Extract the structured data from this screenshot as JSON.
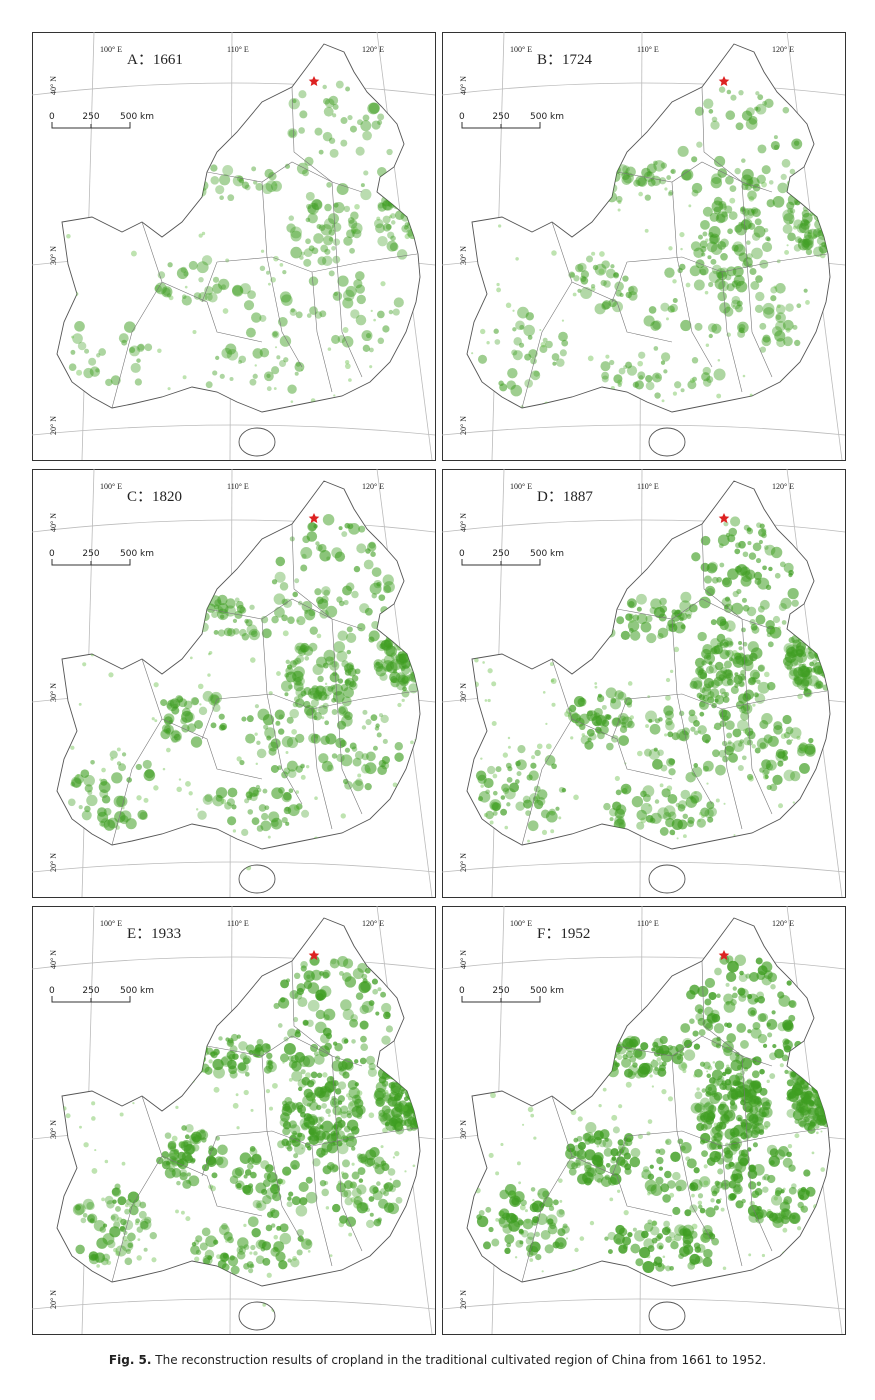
{
  "panels": [
    {
      "label": "A：1661",
      "lon_labels": [
        "100° E",
        "110° E",
        "120° E"
      ],
      "lat_labels": [
        "40° N",
        "30° N",
        "20° N"
      ],
      "scale_labels": [
        "0",
        "250",
        "500 km"
      ]
    },
    {
      "label": "B：1724",
      "lon_labels": [
        "100° E",
        "110° E",
        "120° E"
      ],
      "lat_labels": [
        "40° N",
        "30° N",
        "20° N"
      ],
      "scale_labels": [
        "0",
        "250",
        "500 km"
      ]
    },
    {
      "label": "C：1820",
      "lon_labels": [
        "100° E",
        "110° E",
        "120° E"
      ],
      "lat_labels": [
        "40° N",
        "30° N",
        "20° N"
      ],
      "scale_labels": [
        "0",
        "250",
        "500 km"
      ]
    },
    {
      "label": "D：1887",
      "lon_labels": [
        "100° E",
        "110° E",
        "120° E"
      ],
      "lat_labels": [
        "40° N",
        "30° N",
        "20° N"
      ],
      "scale_labels": [
        "0",
        "250",
        "500 km"
      ]
    },
    {
      "label": "E：1933",
      "lon_labels": [
        "100° E",
        "110° E",
        "120° E"
      ],
      "lat_labels": [
        "40° N",
        "30° N",
        "20° N"
      ],
      "scale_labels": [
        "0",
        "250",
        "500 km"
      ]
    },
    {
      "label": "F：1952",
      "lon_labels": [
        "100° E",
        "110° E",
        "120° E"
      ],
      "lat_labels": [
        "40° N",
        "30° N",
        "20° N"
      ],
      "scale_labels": [
        "0",
        "250",
        "500 km"
      ]
    }
  ],
  "caption": {
    "label": "Fig. 5.",
    "text": "The reconstruction results of cropland in the traditional cultivated region of China from 1661 to 1952."
  }
}
